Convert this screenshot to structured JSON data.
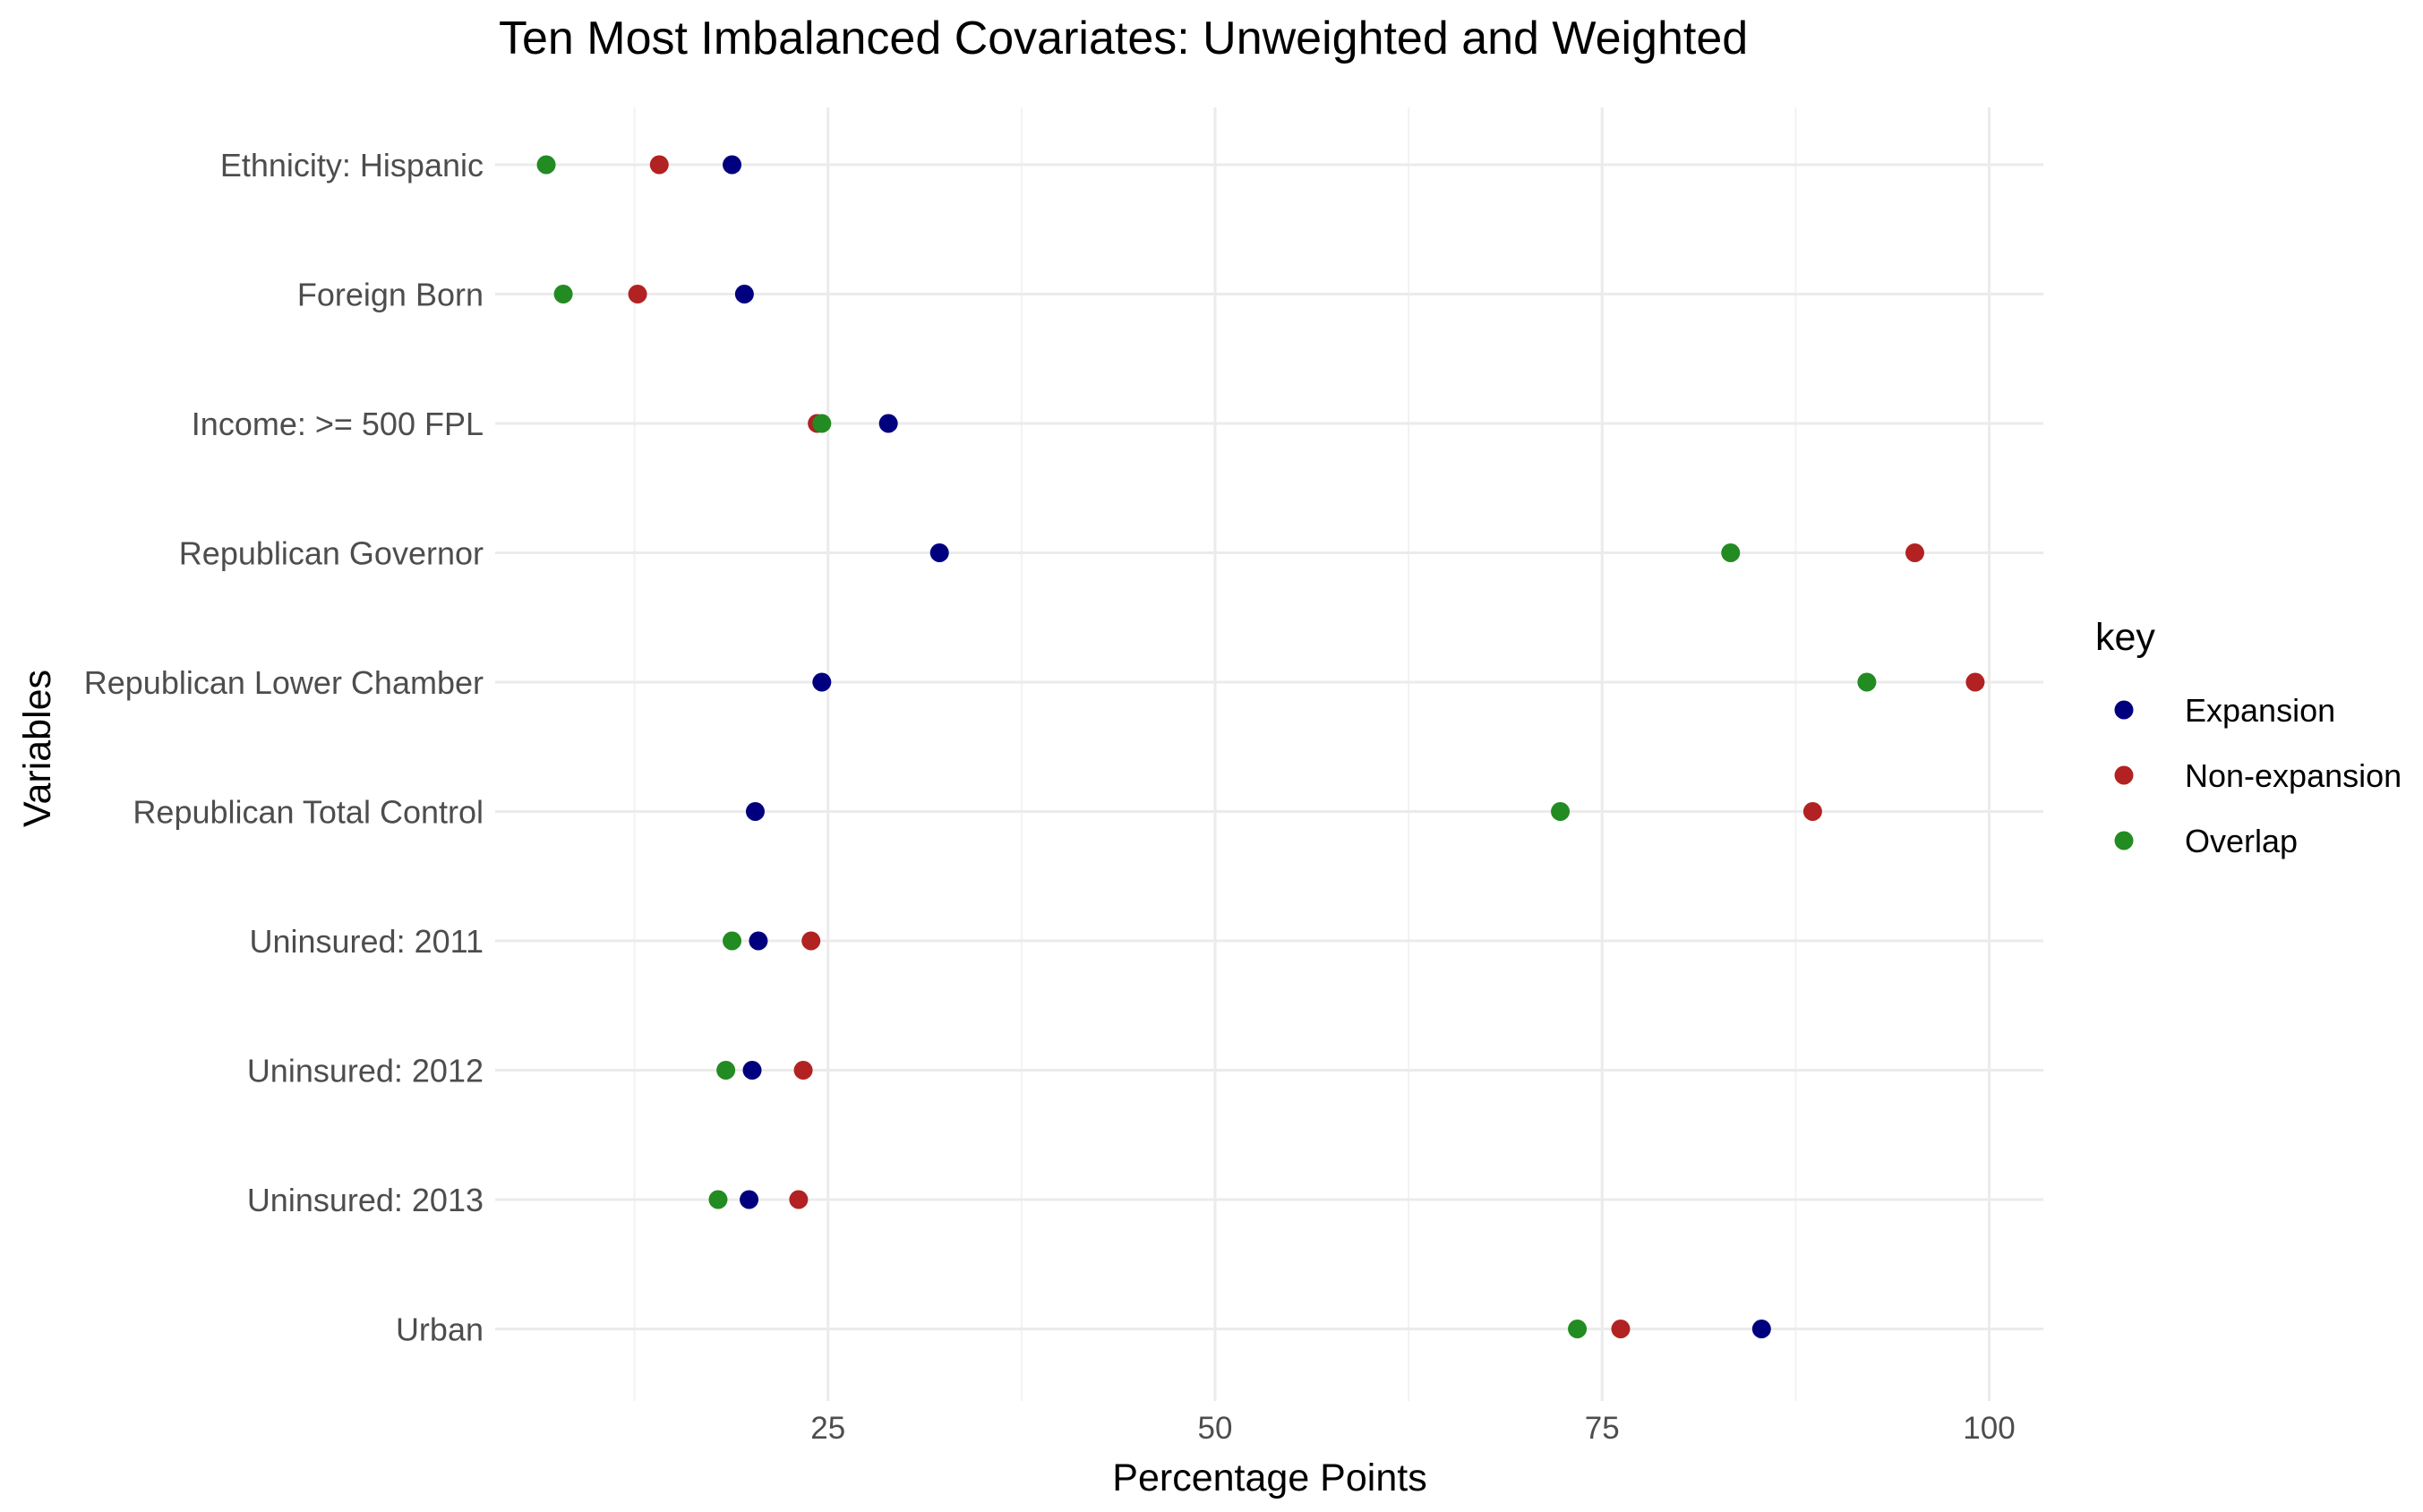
{
  "chart_data": {
    "type": "scatter",
    "title": "Ten Most Imbalanced Covariates: Unweighted and Weighted",
    "xlabel": "Percentage Points",
    "ylabel": "Variables",
    "xlim": [
      3.5,
      103.5
    ],
    "x_ticks": [
      25,
      50,
      75,
      100
    ],
    "x_minor_gridlines": [
      12.5,
      37.5,
      62.5,
      87.5
    ],
    "grid": true,
    "legend_position": "right",
    "legend_title": "key",
    "categories": [
      "Ethnicity: Hispanic",
      "Foreign Born",
      "Income: >= 500 FPL",
      "Republican Governor",
      "Republican Lower Chamber",
      "Republican Total Control",
      "Uninsured: 2011",
      "Uninsured: 2012",
      "Uninsured: 2013",
      "Urban"
    ],
    "series": [
      {
        "name": "Expansion",
        "color": "#00007F",
        "values": [
          18.8,
          19.6,
          28.9,
          32.2,
          24.6,
          20.3,
          20.5,
          20.1,
          19.9,
          85.3
        ]
      },
      {
        "name": "Non-expansion",
        "color": "#B22222",
        "values": [
          14.1,
          12.7,
          24.3,
          95.2,
          99.1,
          88.6,
          23.9,
          23.4,
          23.1,
          76.2
        ]
      },
      {
        "name": "Overlap",
        "color": "#228B22",
        "values": [
          6.8,
          7.9,
          24.6,
          83.3,
          92.1,
          72.3,
          18.8,
          18.4,
          17.9,
          73.4
        ]
      }
    ]
  }
}
